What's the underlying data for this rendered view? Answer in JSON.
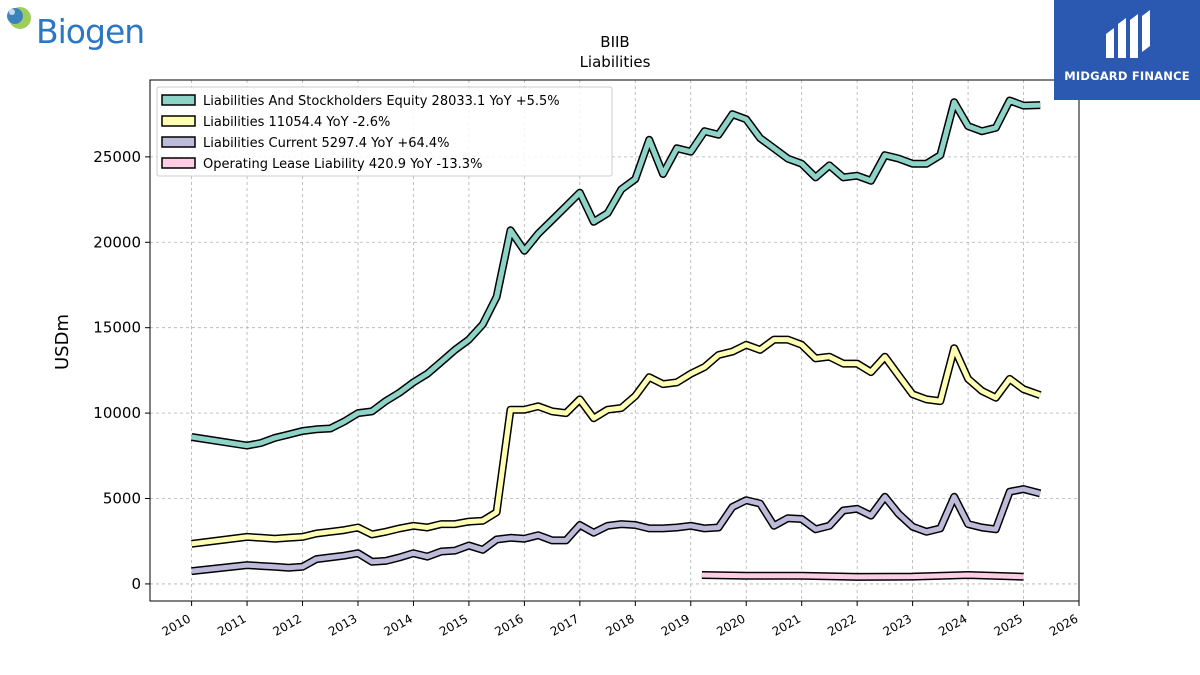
{
  "logos": {
    "left": "Biogen",
    "right": "MIDGARD FINANCE"
  },
  "chart_data": {
    "type": "line",
    "title": "BIIB",
    "subtitle": "Liabilities",
    "ylabel": "USDm",
    "xlabel": "",
    "xlim": [
      2009.25,
      2026.0
    ],
    "ylim": [
      -1000,
      29500
    ],
    "xticks": [
      2010,
      2011,
      2012,
      2013,
      2014,
      2015,
      2016,
      2017,
      2018,
      2019,
      2020,
      2021,
      2022,
      2023,
      2024,
      2025,
      2026
    ],
    "yticks": [
      0,
      5000,
      10000,
      15000,
      20000,
      25000
    ],
    "grid": true,
    "legend_position": "upper-left",
    "series": [
      {
        "name": "Liabilities And Stockholders Equity",
        "legend_label": "Liabilities And Stockholders Equity  28033.1 YoY +5.5%",
        "color": "#8dd3c7",
        "points": [
          [
            2010.0,
            8600
          ],
          [
            2011.0,
            8100
          ],
          [
            2011.25,
            8250
          ],
          [
            2011.5,
            8550
          ],
          [
            2011.75,
            8750
          ],
          [
            2012.0,
            8950
          ],
          [
            2012.25,
            9050
          ],
          [
            2012.5,
            9100
          ],
          [
            2012.75,
            9500
          ],
          [
            2013.0,
            10000
          ],
          [
            2013.25,
            10100
          ],
          [
            2013.5,
            10700
          ],
          [
            2013.75,
            11200
          ],
          [
            2014.0,
            11800
          ],
          [
            2014.25,
            12300
          ],
          [
            2014.5,
            13000
          ],
          [
            2014.75,
            13700
          ],
          [
            2015.0,
            14300
          ],
          [
            2015.25,
            15200
          ],
          [
            2015.5,
            16800
          ],
          [
            2015.75,
            20700
          ],
          [
            2016.0,
            19500
          ],
          [
            2016.25,
            20500
          ],
          [
            2016.5,
            21300
          ],
          [
            2016.75,
            22100
          ],
          [
            2017.0,
            22900
          ],
          [
            2017.25,
            21200
          ],
          [
            2017.5,
            21700
          ],
          [
            2017.75,
            23100
          ],
          [
            2018.0,
            23700
          ],
          [
            2018.25,
            26000
          ],
          [
            2018.5,
            24000
          ],
          [
            2018.75,
            25500
          ],
          [
            2019.0,
            25300
          ],
          [
            2019.25,
            26500
          ],
          [
            2019.5,
            26300
          ],
          [
            2019.75,
            27500
          ],
          [
            2020.0,
            27200
          ],
          [
            2020.25,
            26100
          ],
          [
            2020.5,
            25500
          ],
          [
            2020.75,
            24900
          ],
          [
            2021.0,
            24600
          ],
          [
            2021.25,
            23800
          ],
          [
            2021.5,
            24500
          ],
          [
            2021.75,
            23800
          ],
          [
            2022.0,
            23900
          ],
          [
            2022.25,
            23600
          ],
          [
            2022.5,
            25100
          ],
          [
            2022.75,
            24900
          ],
          [
            2023.0,
            24600
          ],
          [
            2023.25,
            24600
          ],
          [
            2023.5,
            25100
          ],
          [
            2023.75,
            28200
          ],
          [
            2024.0,
            26800
          ],
          [
            2024.25,
            26500
          ],
          [
            2024.5,
            26700
          ],
          [
            2024.75,
            28300
          ],
          [
            2025.0,
            28000
          ],
          [
            2025.3,
            28033
          ]
        ]
      },
      {
        "name": "Liabilities",
        "legend_label": "Liabilities  11054.4 YoY -2.6%",
        "color": "#ffffb3",
        "points": [
          [
            2010.0,
            2350
          ],
          [
            2011.0,
            2750
          ],
          [
            2011.25,
            2700
          ],
          [
            2011.5,
            2650
          ],
          [
            2011.75,
            2700
          ],
          [
            2012.0,
            2750
          ],
          [
            2012.25,
            2950
          ],
          [
            2012.5,
            3050
          ],
          [
            2012.75,
            3150
          ],
          [
            2013.0,
            3300
          ],
          [
            2013.25,
            2900
          ],
          [
            2013.5,
            3050
          ],
          [
            2013.75,
            3250
          ],
          [
            2014.0,
            3400
          ],
          [
            2014.25,
            3300
          ],
          [
            2014.5,
            3500
          ],
          [
            2014.75,
            3500
          ],
          [
            2015.0,
            3650
          ],
          [
            2015.25,
            3700
          ],
          [
            2015.5,
            4200
          ],
          [
            2015.75,
            10200
          ],
          [
            2016.0,
            10200
          ],
          [
            2016.25,
            10400
          ],
          [
            2016.5,
            10100
          ],
          [
            2016.75,
            10000
          ],
          [
            2017.0,
            10800
          ],
          [
            2017.25,
            9700
          ],
          [
            2017.5,
            10200
          ],
          [
            2017.75,
            10300
          ],
          [
            2018.0,
            11000
          ],
          [
            2018.25,
            12100
          ],
          [
            2018.5,
            11700
          ],
          [
            2018.75,
            11800
          ],
          [
            2019.0,
            12300
          ],
          [
            2019.25,
            12700
          ],
          [
            2019.5,
            13400
          ],
          [
            2019.75,
            13600
          ],
          [
            2020.0,
            14000
          ],
          [
            2020.25,
            13700
          ],
          [
            2020.5,
            14300
          ],
          [
            2020.75,
            14300
          ],
          [
            2021.0,
            14000
          ],
          [
            2021.25,
            13200
          ],
          [
            2021.5,
            13300
          ],
          [
            2021.75,
            12900
          ],
          [
            2022.0,
            12900
          ],
          [
            2022.25,
            12400
          ],
          [
            2022.5,
            13300
          ],
          [
            2022.75,
            12200
          ],
          [
            2023.0,
            11100
          ],
          [
            2023.25,
            10800
          ],
          [
            2023.5,
            10700
          ],
          [
            2023.75,
            13800
          ],
          [
            2024.0,
            12000
          ],
          [
            2024.25,
            11300
          ],
          [
            2024.5,
            10900
          ],
          [
            2024.75,
            12000
          ],
          [
            2025.0,
            11400
          ],
          [
            2025.3,
            11054
          ]
        ]
      },
      {
        "name": "Liabilities Current",
        "legend_label": "Liabilities Current  5297.4 YoY +64.4%",
        "color": "#bebada",
        "points": [
          [
            2010.0,
            750
          ],
          [
            2011.0,
            1100
          ],
          [
            2011.25,
            1050
          ],
          [
            2011.5,
            1000
          ],
          [
            2011.75,
            950
          ],
          [
            2012.0,
            1000
          ],
          [
            2012.25,
            1450
          ],
          [
            2012.5,
            1550
          ],
          [
            2012.75,
            1650
          ],
          [
            2013.0,
            1800
          ],
          [
            2013.25,
            1300
          ],
          [
            2013.5,
            1350
          ],
          [
            2013.75,
            1550
          ],
          [
            2014.0,
            1800
          ],
          [
            2014.25,
            1600
          ],
          [
            2014.5,
            1900
          ],
          [
            2014.75,
            1950
          ],
          [
            2015.0,
            2250
          ],
          [
            2015.25,
            2000
          ],
          [
            2015.5,
            2600
          ],
          [
            2015.75,
            2700
          ],
          [
            2016.0,
            2650
          ],
          [
            2016.25,
            2850
          ],
          [
            2016.5,
            2550
          ],
          [
            2016.75,
            2550
          ],
          [
            2017.0,
            3450
          ],
          [
            2017.25,
            3000
          ],
          [
            2017.5,
            3400
          ],
          [
            2017.75,
            3500
          ],
          [
            2018.0,
            3450
          ],
          [
            2018.25,
            3250
          ],
          [
            2018.5,
            3250
          ],
          [
            2018.75,
            3300
          ],
          [
            2019.0,
            3400
          ],
          [
            2019.25,
            3250
          ],
          [
            2019.5,
            3300
          ],
          [
            2019.75,
            4500
          ],
          [
            2020.0,
            4900
          ],
          [
            2020.25,
            4700
          ],
          [
            2020.5,
            3400
          ],
          [
            2020.75,
            3850
          ],
          [
            2021.0,
            3800
          ],
          [
            2021.25,
            3200
          ],
          [
            2021.5,
            3400
          ],
          [
            2021.75,
            4300
          ],
          [
            2022.0,
            4400
          ],
          [
            2022.25,
            4000
          ],
          [
            2022.5,
            5100
          ],
          [
            2022.75,
            4100
          ],
          [
            2023.0,
            3350
          ],
          [
            2023.25,
            3050
          ],
          [
            2023.5,
            3250
          ],
          [
            2023.75,
            5100
          ],
          [
            2024.0,
            3500
          ],
          [
            2024.25,
            3300
          ],
          [
            2024.5,
            3200
          ],
          [
            2024.75,
            5400
          ],
          [
            2025.0,
            5550
          ],
          [
            2025.3,
            5297
          ]
        ]
      },
      {
        "name": "Operating Lease Liability",
        "legend_label": "Operating Lease Liability  420.9 YoY -13.3%",
        "color": "#fccde5",
        "points": [
          [
            2019.2,
            520
          ],
          [
            2020.0,
            480
          ],
          [
            2021.0,
            480
          ],
          [
            2022.0,
            410
          ],
          [
            2023.0,
            430
          ],
          [
            2024.0,
            520
          ],
          [
            2025.0,
            421
          ]
        ]
      }
    ]
  }
}
